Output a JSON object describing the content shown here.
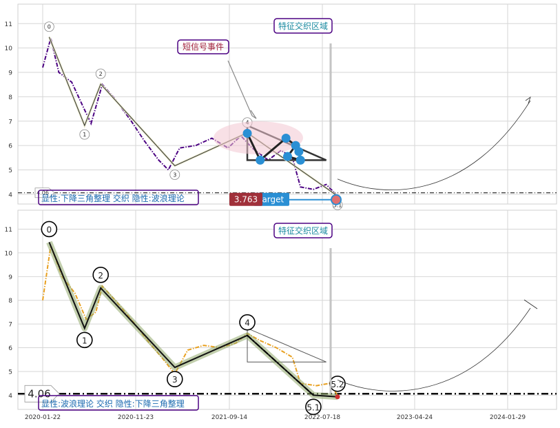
{
  "chart_data": [
    {
      "type": "line",
      "panel": "top",
      "ylim": [
        3.6,
        11.8
      ],
      "y_ticks": [
        "4",
        "5",
        "6",
        "7",
        "8",
        "9",
        "10",
        "11"
      ],
      "series": [
        {
          "color": "#4b0082",
          "style": "dash-dot",
          "values": [
            [
              0,
              9.2
            ],
            [
              5,
              10.4
            ],
            [
              10,
              9.0
            ],
            [
              18,
              8.6
            ],
            [
              25,
              7.6
            ],
            [
              30,
              6.9
            ],
            [
              37,
              8.5
            ],
            [
              45,
              7.9
            ],
            [
              55,
              7.0
            ],
            [
              63,
              6.2
            ],
            [
              72,
              5.4
            ],
            [
              78,
              5.0
            ],
            [
              85,
              5.9
            ],
            [
              95,
              6.0
            ],
            [
              105,
              6.3
            ],
            [
              115,
              5.9
            ],
            [
              123,
              6.4
            ],
            [
              130,
              5.9
            ],
            [
              140,
              5.4
            ],
            [
              148,
              5.8
            ],
            [
              155,
              5.5
            ],
            [
              160,
              4.3
            ],
            [
              168,
              4.2
            ],
            [
              176,
              4.4
            ],
            [
              182,
              4.0
            ]
          ]
        }
      ],
      "wave_points": [
        [
          4,
          10.45
        ],
        [
          26,
          6.82
        ],
        [
          36,
          8.52
        ],
        [
          82,
          5.17
        ],
        [
          127,
          6.52
        ],
        [
          183,
          3.93
        ]
      ],
      "wave_labels": [
        "0",
        "1",
        "2",
        "3",
        "4",
        "5.1"
      ],
      "hline_value": 4.06,
      "hline_label": "4.06",
      "triangle": [
        [
          127,
          6.82
        ],
        [
          127,
          5.4
        ],
        [
          176,
          5.4
        ]
      ],
      "blue_points": [
        [
          127,
          6.5
        ],
        [
          135,
          5.4
        ],
        [
          151,
          6.3
        ],
        [
          157,
          6.0
        ],
        [
          152,
          5.55
        ],
        [
          160,
          5.4
        ],
        [
          159,
          5.75
        ]
      ],
      "price_label": "3.763",
      "target_label": "target",
      "annotations": {
        "short_signal": "短信号事件",
        "zone": "特征交织区域"
      },
      "footer_text": "显性:下降三角整理 交织 隐性:波浪理论"
    },
    {
      "type": "line",
      "panel": "bottom",
      "ylim": [
        3.4,
        11.8
      ],
      "y_ticks": [
        "4",
        "5",
        "6",
        "7",
        "8",
        "9",
        "10",
        "11"
      ],
      "x_ticks": [
        "2020-01-22",
        "2020-11-23",
        "2021-09-14",
        "2022-07-18",
        "2023-04-24",
        "2024-01-29"
      ],
      "series": [
        {
          "color": "#e8a020",
          "style": "dash-dot",
          "values": [
            [
              0,
              8.0
            ],
            [
              5,
              10.3
            ],
            [
              12,
              9.0
            ],
            [
              20,
              8.3
            ],
            [
              27,
              7.2
            ],
            [
              33,
              7.5
            ],
            [
              37,
              8.6
            ],
            [
              45,
              8.0
            ],
            [
              55,
              7.2
            ],
            [
              65,
              6.3
            ],
            [
              75,
              5.5
            ],
            [
              82,
              4.9
            ],
            [
              90,
              5.9
            ],
            [
              100,
              6.1
            ],
            [
              110,
              6.0
            ],
            [
              120,
              6.2
            ],
            [
              127,
              6.6
            ],
            [
              135,
              6.3
            ],
            [
              145,
              6.0
            ],
            [
              155,
              5.6
            ],
            [
              160,
              4.5
            ],
            [
              170,
              4.4
            ],
            [
              178,
              4.5
            ],
            [
              183,
              4.0
            ]
          ]
        }
      ],
      "wave_points": [
        [
          4,
          10.45
        ],
        [
          26,
          6.82
        ],
        [
          36,
          8.52
        ],
        [
          82,
          5.17
        ],
        [
          127,
          6.52
        ],
        [
          168,
          4.0
        ],
        [
          183,
          3.93
        ]
      ],
      "wave_labels": [
        "0",
        "1",
        "2",
        "3",
        "4",
        "5.1",
        "5.2"
      ],
      "hline_value": 4.06,
      "hline_label": "4.06",
      "triangle": [
        [
          127,
          6.82
        ],
        [
          127,
          5.4
        ],
        [
          176,
          5.4
        ]
      ],
      "annotations": {
        "zone": "特征交织区域"
      },
      "footer_text": "显性:波浪理论 交织 隐性:下降三角整理"
    }
  ]
}
